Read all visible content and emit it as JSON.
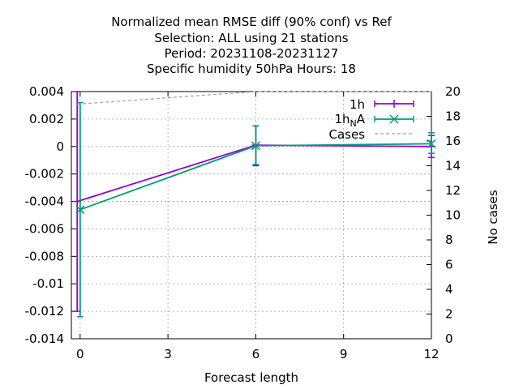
{
  "chart_data": {
    "type": "line",
    "title_lines": [
      "Normalized mean RMSE diff (90% conf) vs Ref",
      "Selection: ALL using    21 stations",
      "Period: 20231108-20231127",
      "Specific humidity 50hPa   Hours:  18"
    ],
    "xlabel": "Forecast length",
    "ylabel": "",
    "y2label": "No cases",
    "xlim": [
      -0.3,
      12
    ],
    "ylim": [
      -0.014,
      0.004
    ],
    "y2lim": [
      0,
      20
    ],
    "xticks": [
      "0",
      "3",
      "6",
      "9",
      "12"
    ],
    "yticks": [
      "-0.014",
      "-0.012",
      "-0.01",
      "-0.008",
      "-0.006",
      "-0.004",
      "-0.002",
      "0",
      "0.002",
      "0.004"
    ],
    "y2ticks": [
      "0",
      "2",
      "4",
      "6",
      "8",
      "10",
      "12",
      "14",
      "16",
      "18",
      "20"
    ],
    "grid": true,
    "legend_position": "top-right",
    "series": [
      {
        "name": "1h",
        "color": "#9400d3",
        "marker": "plus",
        "x": [
          -0.1,
          6,
          12
        ],
        "y": [
          -0.004,
          0.0001,
          0.0
        ],
        "err_low": [
          -0.012,
          -0.0014,
          -0.0008
        ],
        "err_high": [
          0.004,
          0.0015,
          0.0008
        ]
      },
      {
        "name": "1h_NA",
        "name_main": "1h",
        "name_sub": "N",
        "name_tail": "A",
        "color": "#009e73",
        "marker": "cross",
        "x": [
          0,
          6,
          12
        ],
        "y": [
          -0.0046,
          5e-05,
          0.0002
        ],
        "err_low": [
          -0.0124,
          -0.0013,
          -0.0005
        ],
        "err_high": [
          0.0032,
          0.0015,
          0.001
        ]
      },
      {
        "name": "Cases",
        "color": "#a0a0a0",
        "axis": "y2",
        "dashed": true,
        "x": [
          -0.1,
          0,
          3,
          6,
          12
        ],
        "y": [
          19,
          19,
          19.5,
          20,
          20
        ]
      }
    ]
  }
}
